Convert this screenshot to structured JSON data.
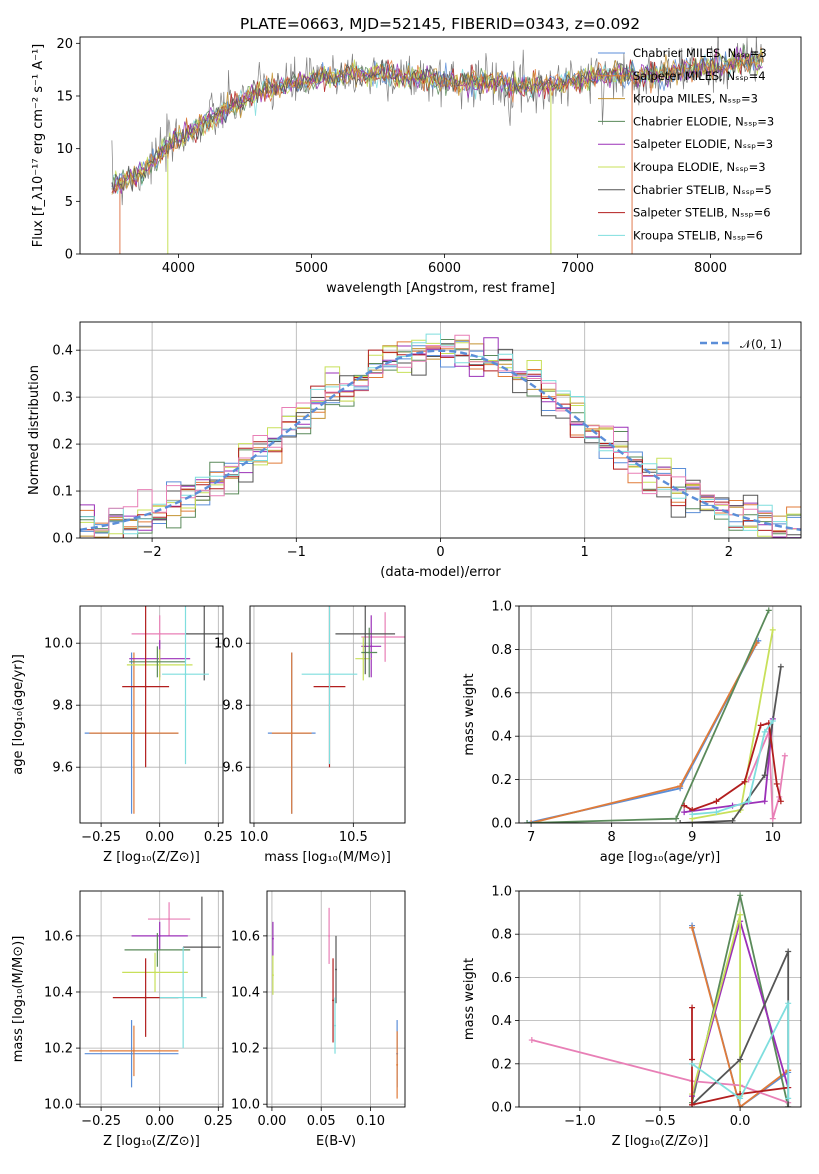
{
  "colors": [
    "#5b8ed8",
    "#e07b39",
    "#c49231",
    "#5a8a5a",
    "#9b30b8",
    "#c8e05a",
    "#555555",
    "#b21e1e",
    "#7fdede",
    "#e87fb6"
  ],
  "chart_data": [
    {
      "id": "spectrum",
      "type": "line",
      "title": "PLATE=0663, MJD=52145, FIBERID=0343, z=0.092",
      "xlabel": "wavelength [Angstrom, rest frame]",
      "ylabel": "Flux [f_λ10⁻¹⁷ erg cm⁻² s⁻¹ A⁻¹]",
      "xlim": [
        3260,
        8680
      ],
      "ylim": [
        0,
        20.6
      ],
      "xticks": [
        "4000",
        "5000",
        "6000",
        "7000",
        "8000"
      ],
      "yticks": [
        "0",
        "5",
        "10",
        "15",
        "20"
      ],
      "legend_position": "right",
      "series": [
        {
          "name": "Chabrier MILES, N_SSP=3"
        },
        {
          "name": "Salpeter MILES, N_SSP=4"
        },
        {
          "name": "Kroupa MILES, N_SSP=3"
        },
        {
          "name": "Chabrier ELODIE, N_SSP=3"
        },
        {
          "name": "Salpeter ELODIE, N_SSP=3"
        },
        {
          "name": "Kroupa ELODIE, N_SSP=3"
        },
        {
          "name": "Chabrier STELIB, N_SSP=5"
        },
        {
          "name": "Salpeter STELIB, N_SSP=6"
        },
        {
          "name": "Kroupa STELIB, N_SSP=6"
        }
      ],
      "continuum": [
        [
          3500,
          6.5
        ],
        [
          3700,
          7.5
        ],
        [
          3900,
          10
        ],
        [
          4000,
          11
        ],
        [
          4200,
          12.5
        ],
        [
          4400,
          14
        ],
        [
          4600,
          15.5
        ],
        [
          4800,
          16
        ],
        [
          5000,
          16.5
        ],
        [
          5200,
          17
        ],
        [
          5500,
          17
        ],
        [
          5800,
          16.8
        ],
        [
          6000,
          16.5
        ],
        [
          6300,
          16.4
        ],
        [
          6500,
          16
        ],
        [
          6800,
          16
        ],
        [
          7000,
          16.5
        ],
        [
          7200,
          17
        ],
        [
          7400,
          17
        ],
        [
          7600,
          17
        ],
        [
          7800,
          17.4
        ],
        [
          8000,
          17.8
        ],
        [
          8200,
          18.2
        ],
        [
          8400,
          18.5
        ]
      ]
    },
    {
      "id": "residuals",
      "type": "histogram",
      "xlabel": "(data-model)/error",
      "ylabel": "Normed distribution",
      "xlim": [
        -2.5,
        2.5
      ],
      "ylim": [
        0,
        0.46
      ],
      "xticks": [
        "−2",
        "−1",
        "0",
        "1",
        "2"
      ],
      "yticks": [
        "0.0",
        "0.1",
        "0.2",
        "0.3",
        "0.4"
      ],
      "grid": true,
      "legend": "𝒩(0, 1)",
      "legend_position": "top-right"
    },
    {
      "id": "age_vs_Z",
      "type": "errorbar",
      "xlabel": "Z [log₁₀(Z/Z⊙)]",
      "ylabel": "age  [log₁₀(age/yr)]",
      "xlim": [
        -0.34,
        0.27
      ],
      "ylim": [
        9.42,
        10.12
      ],
      "xticks": [
        "−0.25",
        "0.00",
        "0.25"
      ],
      "yticks": [
        "9.6",
        "9.8",
        "10.0"
      ],
      "grid": true,
      "points": [
        {
          "x": -0.12,
          "y": 9.71,
          "xerr": 0.2,
          "yerr": 0.26,
          "c": 0
        },
        {
          "x": -0.11,
          "y": 9.71,
          "xerr": 0.19,
          "yerr": 0.26,
          "c": 1
        },
        {
          "x": 0.0,
          "y": 10.03,
          "xerr": 0.12,
          "yerr": 0.06,
          "c": 9
        },
        {
          "x": 0.0,
          "y": 9.95,
          "xerr": 0.13,
          "yerr": 0.06,
          "c": 4
        },
        {
          "x": 0.0,
          "y": 9.93,
          "xerr": 0.14,
          "yerr": 0.05,
          "c": 5
        },
        {
          "x": -0.01,
          "y": 9.94,
          "xerr": 0.12,
          "yerr": 0.05,
          "c": 3
        },
        {
          "x": 0.19,
          "y": 10.03,
          "xerr": 0.08,
          "yerr": 0.15,
          "c": 6
        },
        {
          "x": -0.06,
          "y": 9.86,
          "xerr": 0.1,
          "yerr": 0.26,
          "c": 7
        },
        {
          "x": 0.11,
          "y": 9.9,
          "xerr": 0.1,
          "yerr": 0.29,
          "c": 8
        }
      ]
    },
    {
      "id": "age_vs_mass",
      "type": "errorbar",
      "xlabel": "mass [log₁₀(M/M⊙)]",
      "ylabel": "",
      "xlim": [
        9.98,
        10.76
      ],
      "ylim": [
        9.42,
        10.12
      ],
      "xticks": [
        "10.0",
        "10.5"
      ],
      "yticks": [
        "9.6",
        "9.8",
        "10.0"
      ],
      "grid": true,
      "points": [
        {
          "x": 10.19,
          "y": 9.71,
          "xerr": 0.12,
          "yerr": 0.26,
          "c": 0
        },
        {
          "x": 10.19,
          "y": 9.71,
          "xerr": 0.1,
          "yerr": 0.26,
          "c": 1
        },
        {
          "x": 10.66,
          "y": 10.02,
          "xerr": 0.12,
          "yerr": 0.08,
          "c": 9
        },
        {
          "x": 10.59,
          "y": 9.99,
          "xerr": 0.05,
          "yerr": 0.1,
          "c": 4
        },
        {
          "x": 10.55,
          "y": 9.95,
          "xerr": 0.04,
          "yerr": 0.07,
          "c": 5
        },
        {
          "x": 10.58,
          "y": 9.97,
          "xerr": 0.04,
          "yerr": 0.08,
          "c": 3
        },
        {
          "x": 10.56,
          "y": 10.03,
          "xerr": 0.15,
          "yerr": 0.13,
          "c": 6
        },
        {
          "x": 10.38,
          "y": 9.86,
          "xerr": 0.08,
          "yerr": 0.26,
          "c": 7
        },
        {
          "x": 10.38,
          "y": 9.9,
          "xerr": 0.14,
          "yerr": 0.29,
          "c": 8
        }
      ]
    },
    {
      "id": "weight_vs_age",
      "type": "line",
      "xlabel": "age  [log₁₀(age/yr)]",
      "ylabel": "mass weight",
      "xlim": [
        6.85,
        10.35
      ],
      "ylim": [
        0,
        1.0
      ],
      "xticks": [
        "7",
        "8",
        "9",
        "10"
      ],
      "yticks": [
        "0.0",
        "0.2",
        "0.4",
        "0.6",
        "0.8",
        "1.0"
      ],
      "grid": true,
      "series": [
        {
          "c": 0,
          "x": [
            6.95,
            8.85,
            9.82
          ],
          "y": [
            0.0,
            0.16,
            0.84
          ]
        },
        {
          "c": 1,
          "x": [
            7.0,
            8.85,
            9.8
          ],
          "y": [
            0.0,
            0.17,
            0.83
          ]
        },
        {
          "c": 3,
          "x": [
            6.95,
            8.8,
            9.95
          ],
          "y": [
            0.0,
            0.02,
            0.98
          ]
        },
        {
          "c": 9,
          "x": [
            9.7,
            9.95,
            10.0,
            10.08,
            10.15
          ],
          "y": [
            0.2,
            0.42,
            0.02,
            0.12,
            0.31
          ]
        },
        {
          "c": 4,
          "x": [
            8.9,
            9.5,
            9.9,
            10.0
          ],
          "y": [
            0.05,
            0.08,
            0.1,
            0.48
          ]
        },
        {
          "c": 5,
          "x": [
            9.0,
            9.6,
            10.0
          ],
          "y": [
            0.02,
            0.06,
            0.89
          ]
        },
        {
          "c": 6,
          "x": [
            8.85,
            9.5,
            9.9,
            10.1
          ],
          "y": [
            0.0,
            0.01,
            0.22,
            0.72
          ]
        },
        {
          "c": 7,
          "x": [
            8.9,
            9.0,
            9.3,
            9.65,
            9.85,
            9.95,
            10.05,
            10.1
          ],
          "y": [
            0.08,
            0.06,
            0.1,
            0.19,
            0.45,
            0.46,
            0.18,
            0.1
          ]
        },
        {
          "c": 8,
          "x": [
            9.0,
            9.3,
            9.7,
            9.9,
            10.0
          ],
          "y": [
            0.04,
            0.05,
            0.1,
            0.42,
            0.47
          ]
        }
      ]
    },
    {
      "id": "mass_vs_Z",
      "type": "errorbar",
      "xlabel": "Z [log₁₀(Z/Z⊙)]",
      "ylabel": "mass [log₁₀(M/M⊙)]",
      "xlim": [
        -0.34,
        0.27
      ],
      "ylim": [
        9.99,
        10.76
      ],
      "xticks": [
        "−0.25",
        "0.00",
        "0.25"
      ],
      "yticks": [
        "10.0",
        "10.2",
        "10.4",
        "10.6"
      ],
      "grid": true,
      "points": [
        {
          "x": -0.12,
          "y": 10.18,
          "xerr": 0.2,
          "yerr": 0.12,
          "c": 0
        },
        {
          "x": -0.11,
          "y": 10.19,
          "xerr": 0.19,
          "yerr": 0.09,
          "c": 1
        },
        {
          "x": 0.04,
          "y": 10.66,
          "xerr": 0.09,
          "yerr": 0.06,
          "c": 9
        },
        {
          "x": 0.0,
          "y": 10.6,
          "xerr": 0.12,
          "yerr": 0.05,
          "c": 4
        },
        {
          "x": -0.02,
          "y": 10.47,
          "xerr": 0.14,
          "yerr": 0.07,
          "c": 5
        },
        {
          "x": -0.01,
          "y": 10.55,
          "xerr": 0.14,
          "yerr": 0.06,
          "c": 3
        },
        {
          "x": 0.18,
          "y": 10.56,
          "xerr": 0.08,
          "yerr": 0.18,
          "c": 6
        },
        {
          "x": -0.06,
          "y": 10.38,
          "xerr": 0.14,
          "yerr": 0.14,
          "c": 7
        },
        {
          "x": 0.1,
          "y": 10.38,
          "xerr": 0.1,
          "yerr": 0.18,
          "c": 8
        }
      ]
    },
    {
      "id": "mass_vs_EBV",
      "type": "errorbar",
      "xlabel": "E(B-V)",
      "ylabel": "",
      "xlim": [
        -0.005,
        0.135
      ],
      "ylim": [
        9.99,
        10.76
      ],
      "xticks": [
        "0.00",
        "0.05",
        "0.10"
      ],
      "yticks": [
        "10.2",
        "10.4",
        "10.6",
        "10.0"
      ],
      "grid": true,
      "points": [
        {
          "x": 0.127,
          "y": 10.18,
          "xerr": 0,
          "yerr": 0.12,
          "c": 0
        },
        {
          "x": 0.127,
          "y": 10.14,
          "xerr": 0,
          "yerr": 0.12,
          "c": 1
        },
        {
          "x": 0.058,
          "y": 10.6,
          "xerr": 0,
          "yerr": 0.1,
          "c": 9
        },
        {
          "x": 0.001,
          "y": 10.59,
          "xerr": 0,
          "yerr": 0.06,
          "c": 4
        },
        {
          "x": 0.001,
          "y": 10.46,
          "xerr": 0,
          "yerr": 0.07,
          "c": 5
        },
        {
          "x": 0.065,
          "y": 10.48,
          "xerr": 0,
          "yerr": 0.12,
          "c": 6
        },
        {
          "x": 0.062,
          "y": 10.37,
          "xerr": 0,
          "yerr": 0.15,
          "c": 7
        },
        {
          "x": 0.064,
          "y": 10.28,
          "xerr": 0,
          "yerr": 0.1,
          "c": 8
        }
      ]
    },
    {
      "id": "weight_vs_Z",
      "type": "line",
      "xlabel": "Z [log₁₀(Z/Z⊙)]",
      "ylabel": "mass weight",
      "xlim": [
        -1.38,
        0.38
      ],
      "ylim": [
        0,
        1.0
      ],
      "xticks": [
        "−1.0",
        "−0.5",
        "0.0"
      ],
      "yticks": [
        "0.0",
        "0.2",
        "0.4",
        "0.6",
        "0.8",
        "1.0"
      ],
      "grid": true,
      "series": [
        {
          "c": 0,
          "x": [
            -0.3,
            0.0,
            0.3
          ],
          "y": [
            0.84,
            0.0,
            0.16
          ]
        },
        {
          "c": 1,
          "x": [
            -0.3,
            0.0,
            0.3
          ],
          "y": [
            0.83,
            0.0,
            0.17
          ]
        },
        {
          "c": 3,
          "x": [
            -0.3,
            0.0,
            0.3
          ],
          "y": [
            0.02,
            0.98,
            0.0
          ]
        },
        {
          "c": 9,
          "x": [
            -1.3,
            -0.3,
            0.0,
            0.3
          ],
          "y": [
            0.31,
            0.12,
            0.1,
            0.02
          ]
        },
        {
          "c": 4,
          "x": [
            -0.3,
            0.0,
            0.3
          ],
          "y": [
            0.05,
            0.86,
            0.09
          ]
        },
        {
          "c": 5,
          "x": [
            -0.3,
            0.0,
            0.0
          ],
          "y": [
            0.06,
            0.89,
            0.05
          ]
        },
        {
          "c": 6,
          "x": [
            -0.3,
            0.0,
            0.3,
            0.3
          ],
          "y": [
            0.01,
            0.22,
            0.72,
            0.0
          ]
        },
        {
          "c": 7,
          "x": [
            -0.3,
            -0.3,
            -0.3,
            0.0,
            0.3
          ],
          "y": [
            0.46,
            0.22,
            0.01,
            0.06,
            0.09
          ]
        },
        {
          "c": 8,
          "x": [
            -0.3,
            0.0,
            0.3,
            0.3
          ],
          "y": [
            0.2,
            0.04,
            0.48,
            0.04
          ]
        }
      ]
    }
  ]
}
